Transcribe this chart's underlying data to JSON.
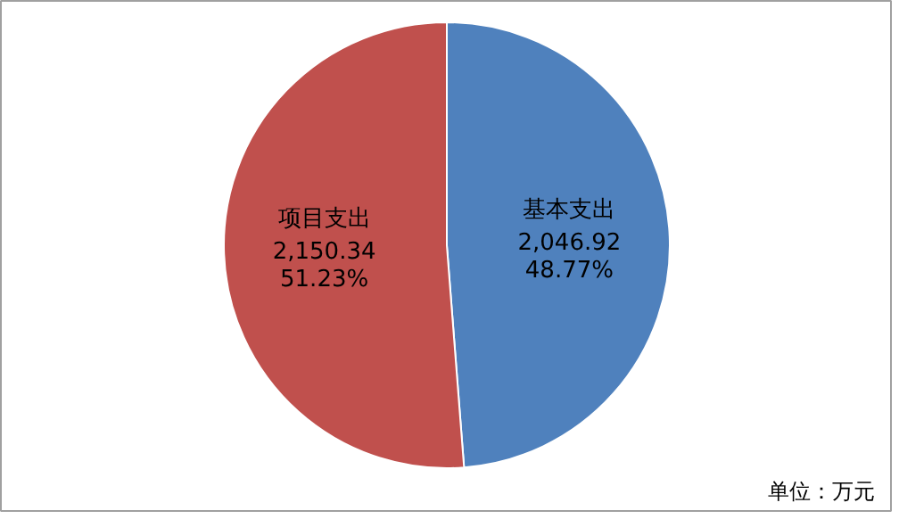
{
  "chart_data": {
    "type": "pie",
    "categories": [
      "基本支出",
      "项目支出"
    ],
    "values": [
      2046.92,
      2150.34
    ],
    "colors": [
      "#4f81bd",
      "#c0504d"
    ],
    "value_labels": [
      "2,046.92\n48.77%",
      "2,150.34\n51.23%"
    ],
    "annotations": [
      "单位：万元"
    ]
  }
}
